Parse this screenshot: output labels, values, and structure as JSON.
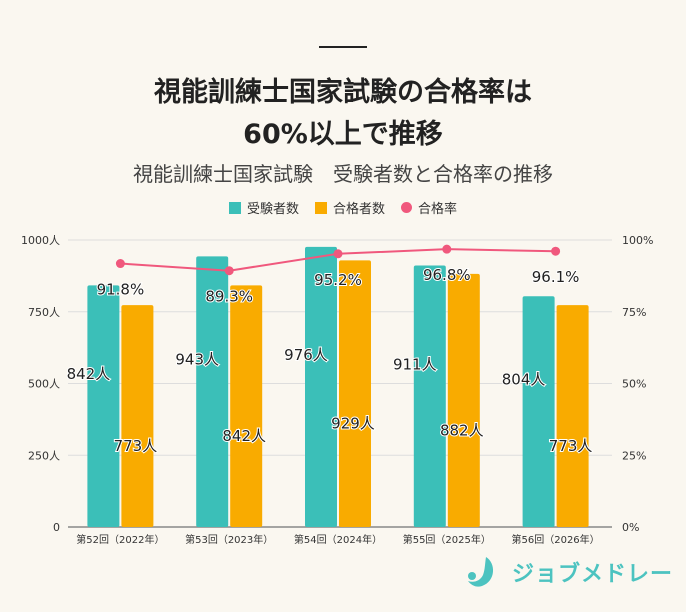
{
  "header": {
    "title_line1": "視能訓練士国家試験の合格率は",
    "title_line2": "60%以上で推移",
    "subtitle": "視能訓練士国家試験　受験者数と合格率の推移"
  },
  "chart_data": {
    "type": "bar",
    "categories": [
      "第52回（2022年）",
      "第53回（2023年）",
      "第54回（2024年）",
      "第55回（2025年）",
      "第56回（2026年）"
    ],
    "series": [
      {
        "name": "受験者数",
        "kind": "bar",
        "axis": "left",
        "color": "#3bbfb8",
        "values": [
          842,
          943,
          976,
          911,
          804
        ],
        "labels": [
          "842人",
          "943人",
          "976人",
          "911人",
          "804人"
        ]
      },
      {
        "name": "合格者数",
        "kind": "bar",
        "axis": "left",
        "color": "#f9ab00",
        "values": [
          773,
          842,
          929,
          882,
          773
        ],
        "labels": [
          "773人",
          "842人",
          "929人",
          "882人",
          "773人"
        ]
      },
      {
        "name": "合格率",
        "kind": "line",
        "axis": "right",
        "color": "#f0587d",
        "values": [
          91.8,
          89.3,
          95.2,
          96.8,
          96.1
        ],
        "labels": [
          "91.8%",
          "89.3%",
          "95.2%",
          "96.8%",
          "96.1%"
        ]
      }
    ],
    "left_axis": {
      "range": [
        0,
        1000
      ],
      "ticks": [
        0,
        250,
        500,
        750,
        1000
      ],
      "tick_labels": [
        "0",
        "250人",
        "500人",
        "750人",
        "1000人"
      ]
    },
    "right_axis": {
      "range": [
        0,
        100
      ],
      "ticks": [
        0,
        25,
        50,
        75,
        100
      ],
      "tick_labels": [
        "0%",
        "25%",
        "50%",
        "75%",
        "100%"
      ]
    },
    "grid": true,
    "legend_placement": "top"
  },
  "logo": {
    "text": "ジョブメドレー",
    "color": "#4cc3c0"
  }
}
